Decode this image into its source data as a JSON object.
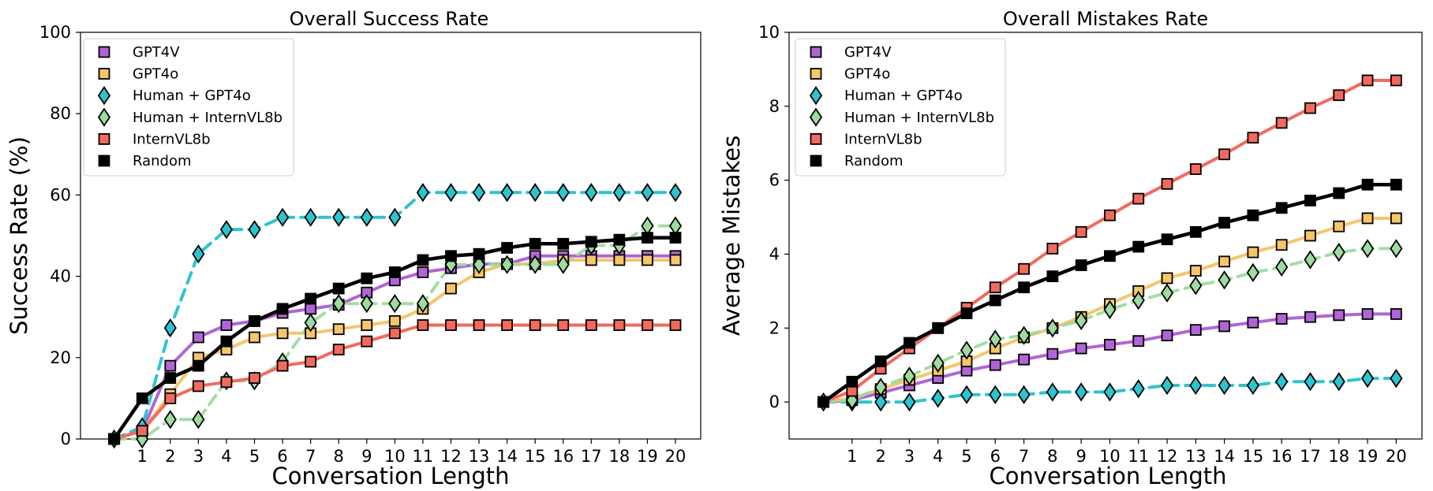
{
  "chart_data": [
    {
      "type": "line",
      "title": "Overall Success Rate",
      "xlabel": "Conversation Length",
      "ylabel": "Success Rate (%)",
      "x": [
        0,
        1,
        2,
        3,
        4,
        5,
        6,
        7,
        8,
        9,
        10,
        11,
        12,
        13,
        14,
        15,
        16,
        17,
        18,
        19,
        20
      ],
      "xticks": [
        1,
        2,
        3,
        4,
        5,
        6,
        7,
        8,
        9,
        10,
        11,
        12,
        13,
        14,
        15,
        16,
        17,
        18,
        19,
        20
      ],
      "xlim": [
        -1.2,
        20.9
      ],
      "ylim": [
        0,
        100
      ],
      "yticks": [
        0,
        20,
        40,
        60,
        80,
        100
      ],
      "grid": false,
      "legend_position": "top-left",
      "series": [
        {
          "name": "GPT4V",
          "color": "#b065d6",
          "marker": "square",
          "dash": false,
          "values": [
            0,
            2,
            18,
            25,
            28,
            29,
            31,
            32,
            33,
            36,
            39,
            41,
            42,
            43,
            43,
            45,
            45,
            45,
            45,
            45,
            45
          ]
        },
        {
          "name": "GPT4o",
          "color": "#f5c66a",
          "marker": "square",
          "dash": false,
          "values": [
            0,
            2,
            11,
            20,
            22,
            25,
            26,
            26,
            27,
            28,
            29,
            32,
            37,
            41,
            43,
            43,
            44,
            44,
            44,
            44,
            44
          ]
        },
        {
          "name": "Human + GPT4o",
          "color": "#2ec4cf",
          "marker": "diamond",
          "dash": true,
          "values": [
            0,
            3,
            27.3,
            45.5,
            51.5,
            51.5,
            54.5,
            54.5,
            54.5,
            54.5,
            54.5,
            60.6,
            60.6,
            60.6,
            60.6,
            60.6,
            60.6,
            60.6,
            60.6,
            60.6,
            60.6
          ]
        },
        {
          "name": "Human + InternVL8b",
          "color": "#9edb9e",
          "marker": "diamond",
          "dash": true,
          "values": [
            0,
            0,
            4.8,
            4.8,
            14.3,
            14.3,
            19,
            28.6,
            33.3,
            33.3,
            33.3,
            33.3,
            42.9,
            42.9,
            42.9,
            42.9,
            42.9,
            47.6,
            47.6,
            52.4,
            52.4
          ]
        },
        {
          "name": "InternVL8b",
          "color": "#f26a5e",
          "marker": "square",
          "dash": false,
          "values": [
            0,
            2,
            10,
            13,
            14,
            15,
            18,
            19,
            22,
            24,
            26,
            28,
            28,
            28,
            28,
            28,
            28,
            28,
            28,
            28,
            28
          ]
        },
        {
          "name": "Random",
          "color": "#000000",
          "marker": "square",
          "dash": false,
          "values": [
            0,
            10,
            15,
            18,
            24,
            29,
            32,
            34.5,
            37,
            39.5,
            41,
            44,
            45,
            45.5,
            47,
            48,
            48,
            48.5,
            49,
            49.5,
            49.5
          ]
        }
      ]
    },
    {
      "type": "line",
      "title": "Overall Mistakes Rate",
      "xlabel": "Conversation Length",
      "ylabel": "Average Mistakes",
      "x": [
        0,
        1,
        2,
        3,
        4,
        5,
        6,
        7,
        8,
        9,
        10,
        11,
        12,
        13,
        14,
        15,
        16,
        17,
        18,
        19,
        20
      ],
      "xticks": [
        1,
        2,
        3,
        4,
        5,
        6,
        7,
        8,
        9,
        10,
        11,
        12,
        13,
        14,
        15,
        16,
        17,
        18,
        19,
        20
      ],
      "xlim": [
        -1.2,
        20.9
      ],
      "ylim": [
        -1,
        10
      ],
      "yticks": [
        0,
        2,
        4,
        6,
        8,
        10
      ],
      "grid": false,
      "legend_position": "top-left",
      "series": [
        {
          "name": "GPT4V",
          "color": "#b065d6",
          "marker": "square",
          "dash": false,
          "values": [
            0,
            0.05,
            0.25,
            0.45,
            0.65,
            0.85,
            1.0,
            1.15,
            1.3,
            1.45,
            1.55,
            1.65,
            1.8,
            1.95,
            2.05,
            2.15,
            2.25,
            2.3,
            2.35,
            2.38,
            2.38
          ]
        },
        {
          "name": "GPT4o",
          "color": "#f5c66a",
          "marker": "square",
          "dash": false,
          "values": [
            0,
            0.1,
            0.35,
            0.6,
            0.85,
            1.1,
            1.45,
            1.75,
            2.0,
            2.3,
            2.65,
            3.0,
            3.35,
            3.55,
            3.8,
            4.05,
            4.25,
            4.5,
            4.75,
            4.97,
            4.97
          ]
        },
        {
          "name": "Human + GPT4o",
          "color": "#2ec4cf",
          "marker": "diamond",
          "dash": true,
          "values": [
            0,
            0,
            0,
            0,
            0.1,
            0.2,
            0.2,
            0.2,
            0.27,
            0.27,
            0.27,
            0.36,
            0.45,
            0.45,
            0.45,
            0.45,
            0.55,
            0.55,
            0.55,
            0.64,
            0.64
          ]
        },
        {
          "name": "Human + InternVL8b",
          "color": "#9edb9e",
          "marker": "diamond",
          "dash": true,
          "values": [
            0,
            0.05,
            0.4,
            0.7,
            1.05,
            1.4,
            1.7,
            1.8,
            2.0,
            2.2,
            2.5,
            2.75,
            2.95,
            3.15,
            3.3,
            3.5,
            3.65,
            3.85,
            4.05,
            4.15,
            4.15
          ]
        },
        {
          "name": "InternVL8b",
          "color": "#f26a5e",
          "marker": "square",
          "dash": false,
          "values": [
            0,
            0.3,
            0.9,
            1.45,
            2.0,
            2.55,
            3.1,
            3.6,
            4.15,
            4.6,
            5.05,
            5.5,
            5.9,
            6.3,
            6.7,
            7.15,
            7.55,
            7.95,
            8.3,
            8.7,
            8.7
          ]
        },
        {
          "name": "Random",
          "color": "#000000",
          "marker": "square",
          "dash": false,
          "values": [
            0,
            0.55,
            1.1,
            1.6,
            2.0,
            2.4,
            2.75,
            3.1,
            3.4,
            3.7,
            3.95,
            4.2,
            4.4,
            4.6,
            4.85,
            5.05,
            5.25,
            5.45,
            5.65,
            5.88,
            5.88
          ]
        }
      ]
    }
  ]
}
